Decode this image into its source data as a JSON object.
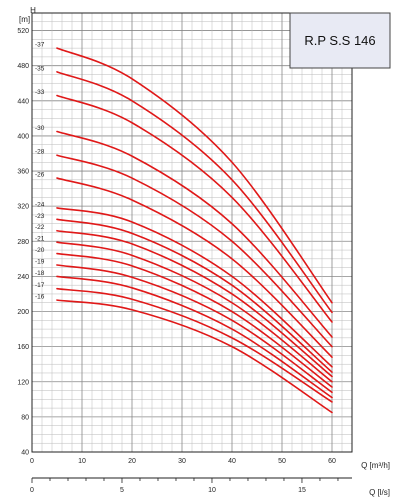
{
  "chart_data": {
    "type": "line",
    "title": "R.P S.S 146",
    "ylabel": "H",
    "ylabel_unit": "[m]",
    "xlabel": "Q [m³/h]",
    "xlabel2": "Q [l/s]",
    "xlim": [
      0,
      64
    ],
    "ylim": [
      40,
      540
    ],
    "x2lim": [
      0,
      17.78
    ],
    "x_ticks": [
      0,
      10,
      20,
      30,
      40,
      50,
      60
    ],
    "x2_ticks": [
      0,
      5,
      10,
      15
    ],
    "y_ticks": [
      40,
      80,
      120,
      160,
      200,
      240,
      280,
      320,
      360,
      400,
      440,
      480,
      520
    ],
    "grid": true,
    "series": [
      {
        "name": "37",
        "x": [
          5,
          20,
          40,
          60
        ],
        "y": [
          500,
          465,
          370,
          210
        ]
      },
      {
        "name": "35",
        "x": [
          5,
          20,
          40,
          60
        ],
        "y": [
          473,
          440,
          350,
          199
        ]
      },
      {
        "name": "33",
        "x": [
          5,
          20,
          40,
          60
        ],
        "y": [
          446,
          415,
          330,
          188
        ]
      },
      {
        "name": "30",
        "x": [
          5,
          20,
          40,
          60
        ],
        "y": [
          405,
          377,
          300,
          171
        ]
      },
      {
        "name": "28",
        "x": [
          5,
          20,
          40,
          60
        ],
        "y": [
          378,
          352,
          280,
          160
        ]
      },
      {
        "name": "26",
        "x": [
          5,
          20,
          40,
          60
        ],
        "y": [
          352,
          327,
          260,
          148
        ]
      },
      {
        "name": "24",
        "x": [
          5,
          20,
          40,
          60
        ],
        "y": [
          318,
          302,
          240,
          137
        ]
      },
      {
        "name": "23",
        "x": [
          5,
          20,
          40,
          60
        ],
        "y": [
          305,
          289,
          230,
          131
        ]
      },
      {
        "name": "22",
        "x": [
          5,
          20,
          40,
          60
        ],
        "y": [
          292,
          277,
          220,
          126
        ]
      },
      {
        "name": "21",
        "x": [
          5,
          20,
          40,
          60
        ],
        "y": [
          279,
          264,
          210,
          120
        ]
      },
      {
        "name": "20",
        "x": [
          5,
          20,
          40,
          60
        ],
        "y": [
          266,
          252,
          200,
          114
        ]
      },
      {
        "name": "19",
        "x": [
          5,
          20,
          40,
          60
        ],
        "y": [
          253,
          239,
          190,
          108
        ]
      },
      {
        "name": "18",
        "x": [
          5,
          20,
          40,
          60
        ],
        "y": [
          240,
          227,
          180,
          102
        ]
      },
      {
        "name": "17",
        "x": [
          5,
          20,
          40,
          60
        ],
        "y": [
          226,
          214,
          170,
          97
        ]
      },
      {
        "name": "16",
        "x": [
          5,
          20,
          40,
          60
        ],
        "y": [
          213,
          202,
          160,
          85
        ]
      }
    ]
  }
}
